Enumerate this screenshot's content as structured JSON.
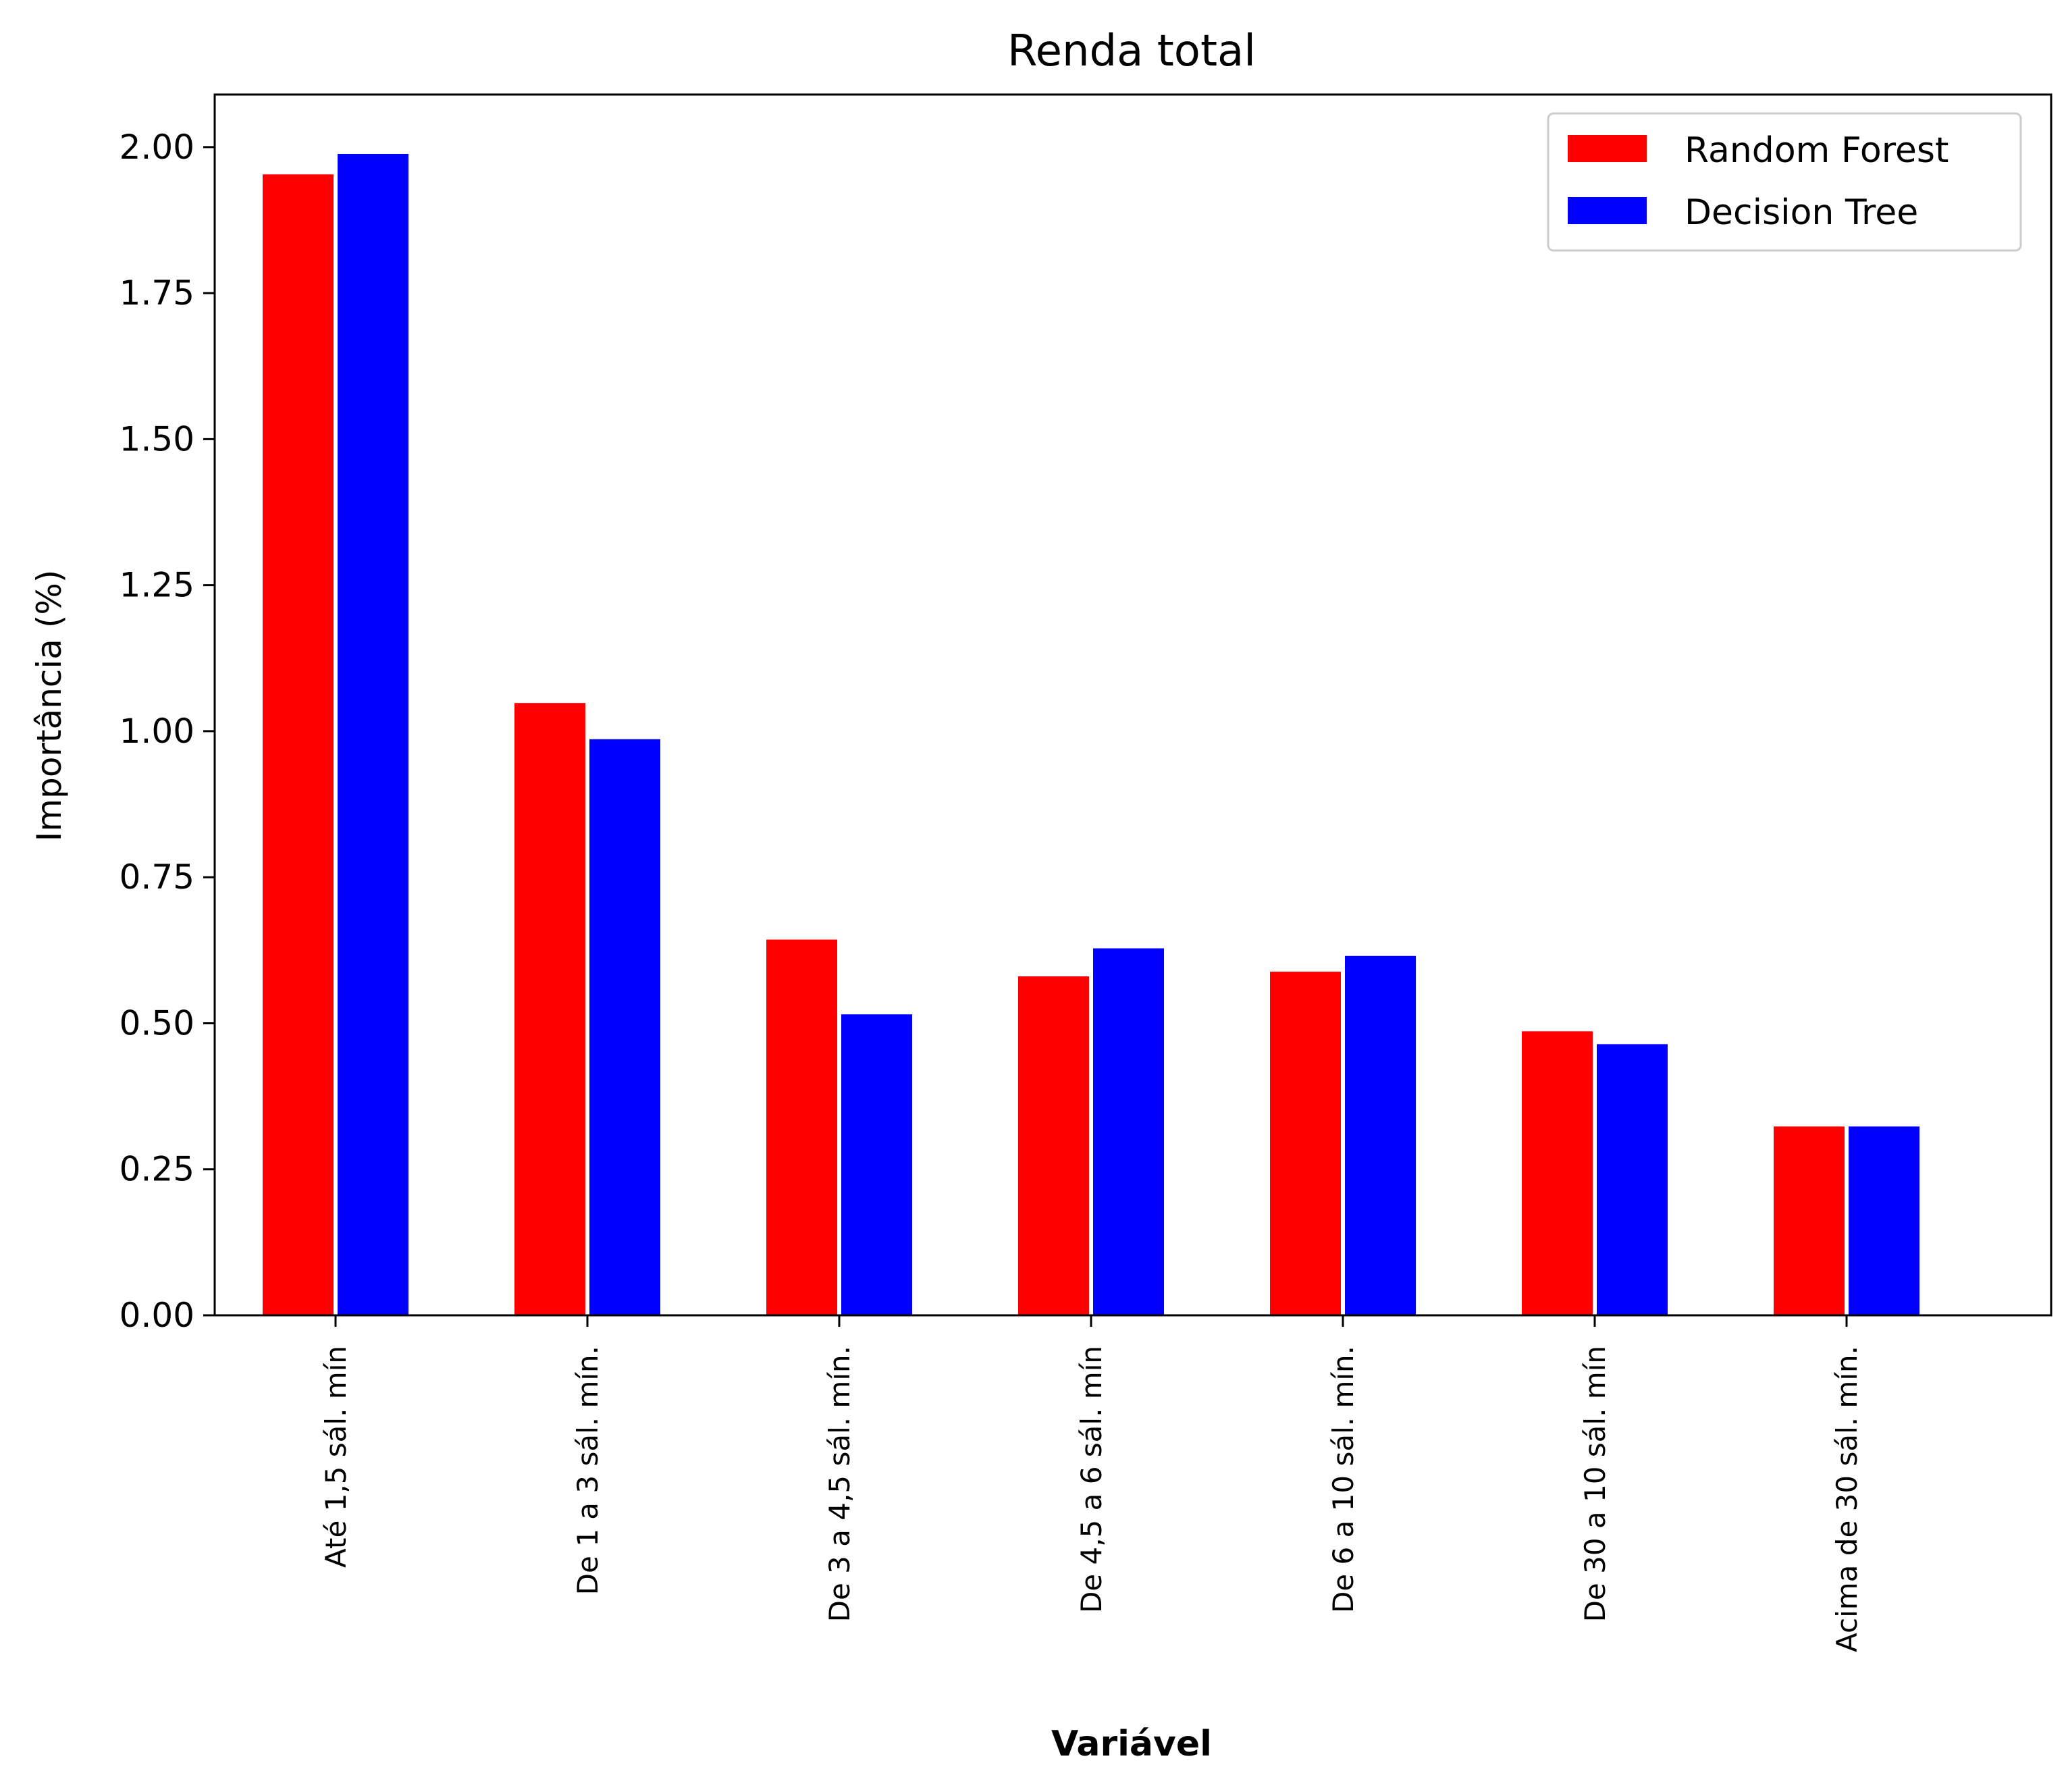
{
  "chart_data": {
    "type": "bar",
    "title": "Renda total",
    "xlabel": "Variável",
    "ylabel": "Importância (%)",
    "ylim": [
      0,
      2.09
    ],
    "yticks": [
      "0.00",
      "0.25",
      "0.50",
      "0.75",
      "1.00",
      "1.25",
      "1.50",
      "1.75",
      "2.00"
    ],
    "categories": [
      "Até 1,5 sál. mín",
      "De 1 a 3 sál. mín.",
      "De 3 a 4,5 sál. mín.",
      "De 4,5 a 6 sál. mín",
      "De 6 a 10 sál. mín.",
      "De 30 a 10 sál. mín",
      "Acima de 30 sál. mín."
    ],
    "series": [
      {
        "name": "Random Forest",
        "color": "#ff0000",
        "values": [
          1.955,
          1.05,
          0.645,
          0.582,
          0.59,
          0.488,
          0.325
        ]
      },
      {
        "name": "Decision Tree",
        "color": "#0000ff",
        "values": [
          1.99,
          0.988,
          0.517,
          0.63,
          0.617,
          0.466,
          0.325
        ]
      }
    ],
    "legend": "top-right",
    "grid": false
  }
}
